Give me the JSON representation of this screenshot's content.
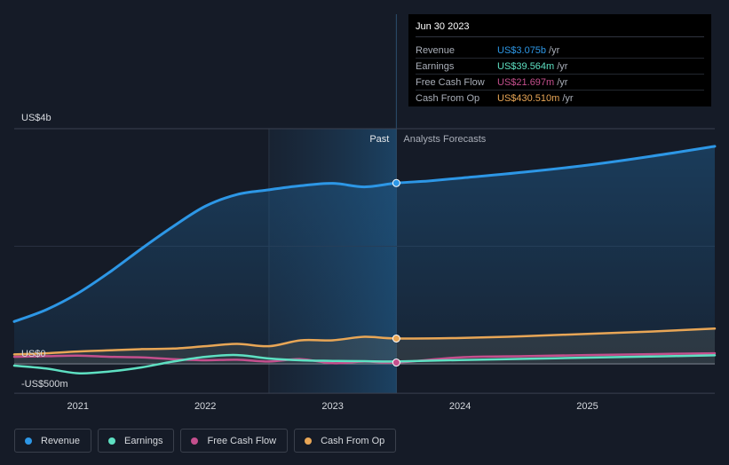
{
  "chart_data": {
    "type": "area",
    "title": "",
    "xlabel": "",
    "ylabel": "",
    "ylim": [
      -500,
      4000
    ],
    "y_labels": {
      "top": "US$4b",
      "zero": "US$0",
      "bottom": "-US$500m"
    },
    "x_ticks": [
      2021,
      2022,
      2023,
      2024,
      2025
    ],
    "x_range": [
      2020.5,
      2026.0
    ],
    "past_label": "Past",
    "forecast_label": "Analysts Forecasts",
    "shaded_from": 2022.5,
    "current_date": 2023.5,
    "series": [
      {
        "name": "Revenue",
        "color": "#2d97e6",
        "x": [
          2020.5,
          2020.75,
          2021.0,
          2021.25,
          2021.5,
          2021.75,
          2022.0,
          2022.25,
          2022.5,
          2022.75,
          2023.0,
          2023.25,
          2023.5,
          2023.75,
          2024.0,
          2024.5,
          2025.0,
          2025.5,
          2026.0
        ],
        "values": [
          720,
          920,
          1200,
          1560,
          1960,
          2340,
          2680,
          2880,
          2960,
          3030,
          3070,
          3010,
          3075,
          3110,
          3160,
          3260,
          3380,
          3530,
          3700
        ]
      },
      {
        "name": "Earnings",
        "color": "#5ee0c2",
        "x": [
          2020.5,
          2020.75,
          2021.0,
          2021.25,
          2021.5,
          2021.75,
          2022.0,
          2022.25,
          2022.5,
          2022.75,
          2023.0,
          2023.25,
          2023.5,
          2024.0,
          2024.5,
          2025.0,
          2025.5,
          2026.0
        ],
        "values": [
          -30,
          -80,
          -160,
          -130,
          -60,
          40,
          120,
          150,
          90,
          60,
          50,
          45,
          40,
          65,
          85,
          105,
          125,
          145
        ]
      },
      {
        "name": "Free Cash Flow",
        "color": "#c44f8d",
        "x": [
          2020.5,
          2020.75,
          2021.0,
          2021.25,
          2021.5,
          2021.75,
          2022.0,
          2022.25,
          2022.5,
          2022.75,
          2023.0,
          2023.25,
          2023.5,
          2024.0,
          2024.5,
          2025.0,
          2025.5,
          2026.0
        ],
        "values": [
          120,
          130,
          140,
          120,
          110,
          80,
          60,
          70,
          40,
          80,
          10,
          40,
          22,
          110,
          130,
          150,
          165,
          180
        ]
      },
      {
        "name": "Cash From Op",
        "color": "#e8a656",
        "x": [
          2020.5,
          2020.75,
          2021.0,
          2021.25,
          2021.5,
          2021.75,
          2022.0,
          2022.25,
          2022.5,
          2022.75,
          2023.0,
          2023.25,
          2023.5,
          2024.0,
          2024.5,
          2025.0,
          2025.5,
          2026.0
        ],
        "values": [
          160,
          180,
          210,
          230,
          250,
          260,
          300,
          340,
          300,
          400,
          400,
          460,
          431,
          440,
          470,
          510,
          550,
          600
        ]
      }
    ]
  },
  "tooltip": {
    "date": "Jun 30 2023",
    "rows": [
      {
        "label": "Revenue",
        "value": "US$3.075b",
        "unit": "/yr",
        "color": "#2d97e6"
      },
      {
        "label": "Earnings",
        "value": "US$39.564m",
        "unit": "/yr",
        "color": "#5ee0c2"
      },
      {
        "label": "Free Cash Flow",
        "value": "US$21.697m",
        "unit": "/yr",
        "color": "#c44f8d"
      },
      {
        "label": "Cash From Op",
        "value": "US$430.510m",
        "unit": "/yr",
        "color": "#e8a656"
      }
    ]
  },
  "legend": [
    {
      "label": "Revenue",
      "color": "#2d97e6"
    },
    {
      "label": "Earnings",
      "color": "#5ee0c2"
    },
    {
      "label": "Free Cash Flow",
      "color": "#c44f8d"
    },
    {
      "label": "Cash From Op",
      "color": "#e8a656"
    }
  ]
}
